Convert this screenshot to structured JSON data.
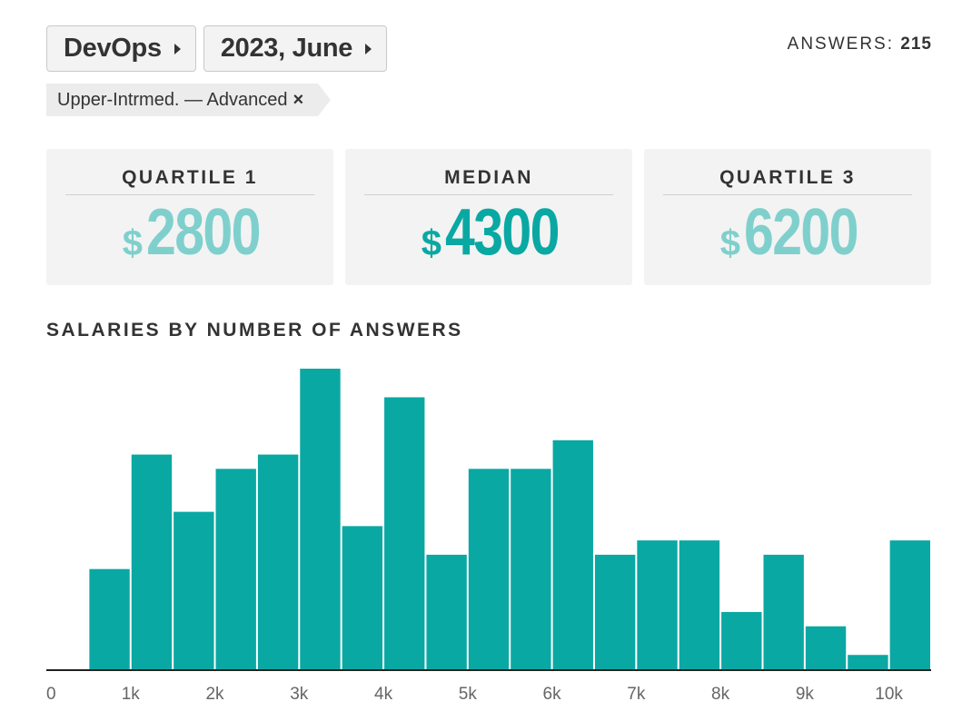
{
  "header": {
    "specialization": "DevOps",
    "period": "2023, June",
    "answers_label": "ANSWERS:",
    "answers_count": "215"
  },
  "filter": {
    "label": "Upper-Intrmed. — Advanced",
    "remove_symbol": "×"
  },
  "stats": [
    {
      "title": "QUARTILE 1",
      "currency": "$",
      "value": "2800",
      "color": "#7fd0cc"
    },
    {
      "title": "MEDIAN",
      "currency": "$",
      "value": "4300",
      "color": "#0aa8a3"
    },
    {
      "title": "QUARTILE 3",
      "currency": "$",
      "value": "6200",
      "color": "#7fd0cc"
    }
  ],
  "colors": {
    "bar": "#0aa8a3",
    "accent_light": "#7fd0cc"
  },
  "chart_data": {
    "type": "bar",
    "title": "SALARIES BY NUMBER OF ANSWERS",
    "xlabel": "",
    "ylabel": "",
    "bin_width": 500,
    "x_ticks": [
      {
        "value": 0,
        "label": "0"
      },
      {
        "value": 1000,
        "label": "1k"
      },
      {
        "value": 2000,
        "label": "2k"
      },
      {
        "value": 3000,
        "label": "3k"
      },
      {
        "value": 4000,
        "label": "4k"
      },
      {
        "value": 5000,
        "label": "5k"
      },
      {
        "value": 6000,
        "label": "6k"
      },
      {
        "value": 7000,
        "label": "7k"
      },
      {
        "value": 8000,
        "label": "8k"
      },
      {
        "value": 9000,
        "label": "9k"
      },
      {
        "value": 10000,
        "label": "10k"
      }
    ],
    "xlim": [
      0,
      10500
    ],
    "bins": [
      {
        "start": 500,
        "end": 1000,
        "count": 7
      },
      {
        "start": 1000,
        "end": 1500,
        "count": 15
      },
      {
        "start": 1500,
        "end": 2000,
        "count": 11
      },
      {
        "start": 2000,
        "end": 2500,
        "count": 14
      },
      {
        "start": 2500,
        "end": 3000,
        "count": 15
      },
      {
        "start": 3000,
        "end": 3500,
        "count": 21
      },
      {
        "start": 3500,
        "end": 4000,
        "count": 10
      },
      {
        "start": 4000,
        "end": 4500,
        "count": 19
      },
      {
        "start": 4500,
        "end": 5000,
        "count": 8
      },
      {
        "start": 5000,
        "end": 5500,
        "count": 14
      },
      {
        "start": 5500,
        "end": 6000,
        "count": 14
      },
      {
        "start": 6000,
        "end": 6500,
        "count": 16
      },
      {
        "start": 6500,
        "end": 7000,
        "count": 8
      },
      {
        "start": 7000,
        "end": 7500,
        "count": 9
      },
      {
        "start": 7500,
        "end": 8000,
        "count": 9
      },
      {
        "start": 8000,
        "end": 8500,
        "count": 4
      },
      {
        "start": 8500,
        "end": 9000,
        "count": 8
      },
      {
        "start": 9000,
        "end": 9500,
        "count": 3
      },
      {
        "start": 9500,
        "end": 10000,
        "count": 1
      },
      {
        "start": 10000,
        "end": 10500,
        "count": 9
      }
    ],
    "ylim": [
      0,
      21
    ],
    "grid": false,
    "legend": "none"
  }
}
